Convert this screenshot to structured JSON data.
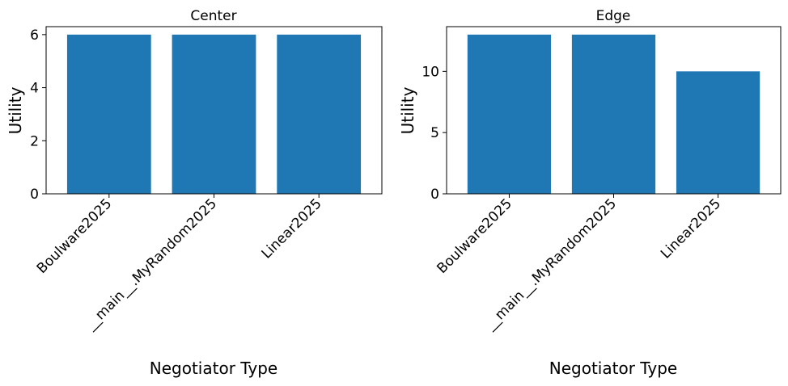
{
  "chart_data": [
    {
      "type": "bar",
      "title": "Center",
      "xlabel": "Negotiator Type",
      "ylabel": "Utility",
      "categories": [
        "Boulware2025",
        "__main__.MyRandom2025",
        "Linear2025"
      ],
      "values": [
        6,
        6,
        6
      ],
      "ylim": [
        0,
        6.3
      ],
      "yticks": [
        0,
        2,
        4,
        6
      ],
      "grid": false,
      "color": "#1f77b4"
    },
    {
      "type": "bar",
      "title": "Edge",
      "xlabel": "Negotiator Type",
      "ylabel": "Utility",
      "categories": [
        "Boulware2025",
        "__main__.MyRandom2025",
        "Linear2025"
      ],
      "values": [
        13,
        13,
        10
      ],
      "ylim": [
        0,
        13.65
      ],
      "yticks": [
        0,
        5,
        10
      ],
      "grid": false,
      "color": "#1f77b4"
    }
  ]
}
